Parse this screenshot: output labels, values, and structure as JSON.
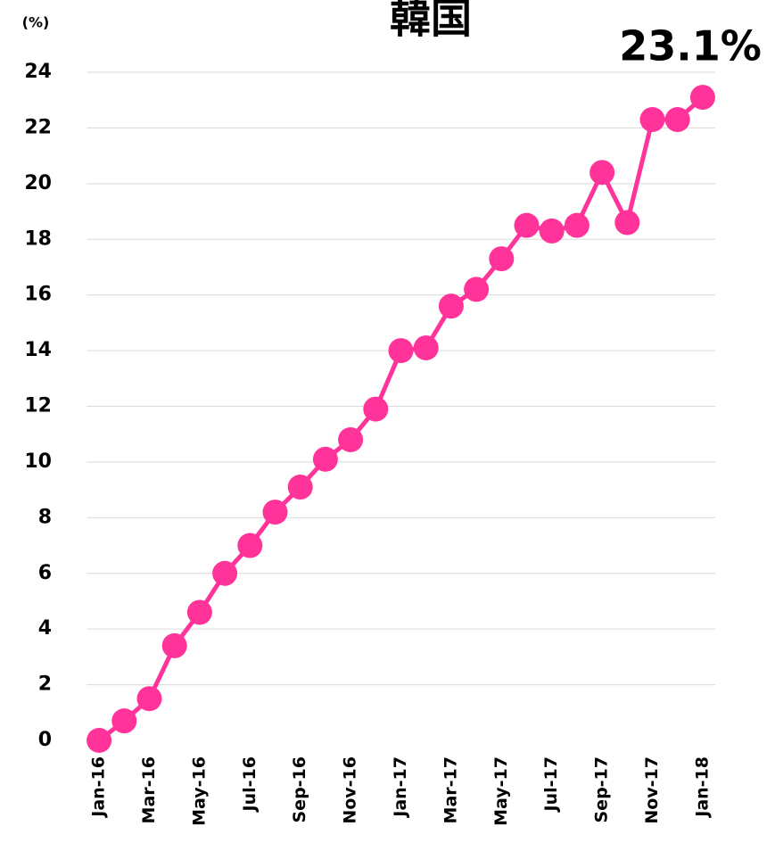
{
  "chart_data": {
    "type": "line",
    "title": "韓国",
    "y_axis_label": "(%)",
    "categories": [
      "Jan-16",
      null,
      "Mar-16",
      null,
      "May-16",
      null,
      "Jul-16",
      null,
      "Sep-16",
      null,
      "Nov-16",
      null,
      "Jan-17",
      null,
      "Mar-17",
      null,
      "May-17",
      null,
      "Jul-17",
      null,
      "Sep-17",
      null,
      "Nov-17",
      null,
      "Jan-18"
    ],
    "series": [
      {
        "name": "韓国",
        "color": "#ff3399",
        "values": [
          0,
          0.7,
          1.5,
          3.4,
          4.6,
          6.0,
          7.0,
          8.2,
          9.1,
          10.1,
          10.8,
          11.9,
          14.0,
          14.1,
          15.6,
          16.2,
          17.3,
          18.5,
          18.3,
          18.5,
          20.4,
          18.6,
          22.3,
          22.3,
          23.1
        ],
        "value_labels": [
          null,
          null,
          null,
          null,
          null,
          null,
          null,
          null,
          null,
          null,
          null,
          null,
          null,
          null,
          null,
          null,
          null,
          null,
          null,
          null,
          null,
          null,
          null,
          null,
          "23.1%"
        ]
      }
    ],
    "ylim": [
      0,
      24
    ],
    "yticks": [
      0,
      2,
      4,
      6,
      8,
      10,
      12,
      14,
      16,
      18,
      20,
      22,
      24
    ],
    "grid": true
  }
}
